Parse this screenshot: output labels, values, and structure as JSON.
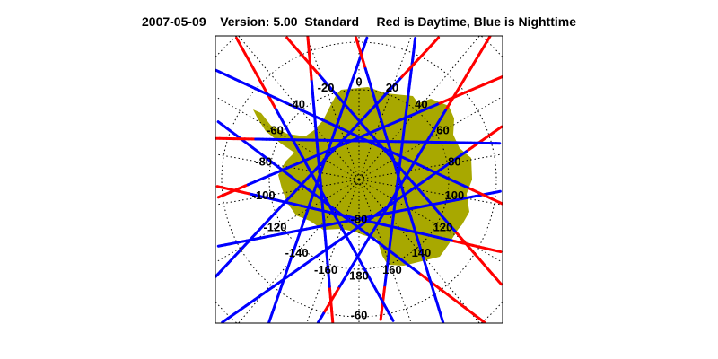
{
  "title": {
    "date": "2007-05-09",
    "version": "Version: 5.00",
    "mode": "Standard",
    "legend": "Red is Daytime, Blue is Nighttime"
  },
  "colors": {
    "land": "#a8a800",
    "day": "#ff0000",
    "night": "#0000ff",
    "graticule": "#000000"
  },
  "map": {
    "projection": "south polar stereographic",
    "longitude_labels": [
      "0",
      "20",
      "40",
      "60",
      "80",
      "100",
      "120",
      "140",
      "160",
      "180",
      "-160",
      "-140",
      "-120",
      "-100",
      "-80",
      "-60",
      "-40",
      "-20"
    ],
    "latitude_labels": [
      "-80",
      "-60"
    ]
  }
}
